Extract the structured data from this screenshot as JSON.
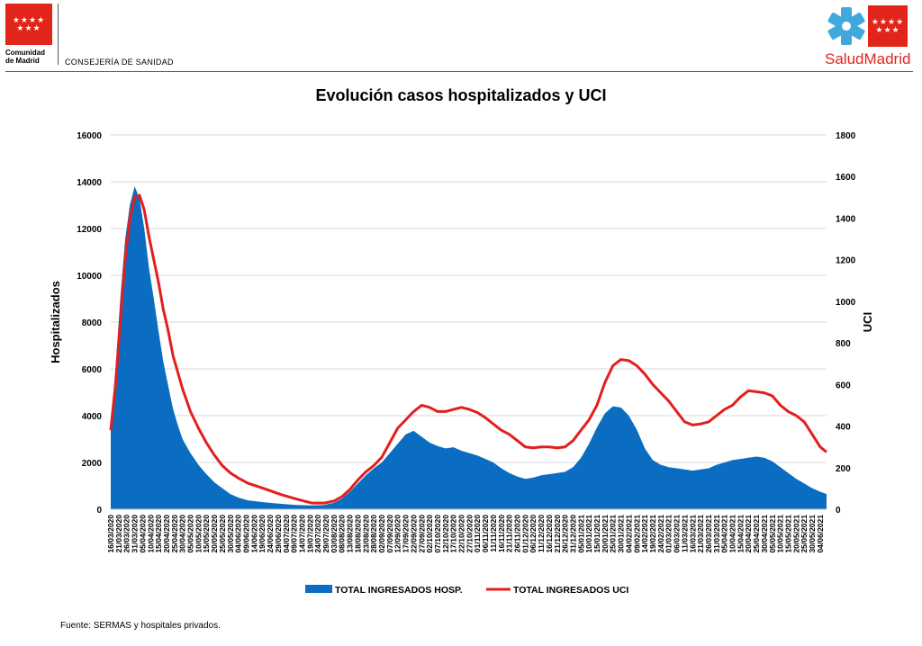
{
  "header": {
    "org_name_line1": "Comunidad",
    "org_name_line2": "de Madrid",
    "department": "CONSEJERÍA DE SANIDAD",
    "brand_left": "Salud",
    "brand_right": "Madrid",
    "logo_icon": "red-flag-stars-icon",
    "brand_icon": "star-of-life-icon"
  },
  "footer": {
    "source": "Fuente: SERMAS y hospitales privados."
  },
  "colors": {
    "hosp": "#0a6dc2",
    "uci": "#e31e1e",
    "brand_red": "#e1251b"
  },
  "chart_data": {
    "type": "area",
    "title": "Evolución casos hospitalizados y UCI",
    "ylabel": "Hospitalizados",
    "y2label": "UCI",
    "ylim": [
      0,
      16000
    ],
    "y2lim": [
      0,
      1800
    ],
    "yticks": [
      "0",
      "2000",
      "4000",
      "6000",
      "8000",
      "10000",
      "12000",
      "14000",
      "16000"
    ],
    "y2ticks": [
      "0",
      "200",
      "400",
      "600",
      "800",
      "1000",
      "1200",
      "1400",
      "1600",
      "1800"
    ],
    "grid": true,
    "legend_position": "bottom",
    "x_start": "2020-03-16",
    "x_end": "2021-06-08",
    "xticks": [
      "16/03/2020",
      "21/03/2020",
      "26/03/2020",
      "31/03/2020",
      "05/04/2020",
      "10/04/2020",
      "15/04/2020",
      "20/04/2020",
      "25/04/2020",
      "30/04/2020",
      "05/05/2020",
      "10/05/2020",
      "15/05/2020",
      "20/05/2020",
      "25/05/2020",
      "30/05/2020",
      "04/06/2020",
      "09/06/2020",
      "14/06/2020",
      "19/06/2020",
      "24/06/2020",
      "29/06/2020",
      "04/07/2020",
      "09/07/2020",
      "14/07/2020",
      "19/07/2020",
      "24/07/2020",
      "29/07/2020",
      "03/08/2020",
      "08/08/2020",
      "13/08/2020",
      "18/08/2020",
      "23/08/2020",
      "28/08/2020",
      "02/09/2020",
      "07/09/2020",
      "12/09/2020",
      "17/09/2020",
      "22/09/2020",
      "27/09/2020",
      "02/10/2020",
      "07/10/2020",
      "12/10/2020",
      "17/10/2020",
      "22/10/2020",
      "27/10/2020",
      "01/11/2020",
      "06/11/2020",
      "11/11/2020",
      "16/11/2020",
      "21/11/2020",
      "26/11/2020",
      "01/12/2020",
      "06/12/2020",
      "11/12/2020",
      "16/12/2020",
      "21/12/2020",
      "26/12/2020",
      "31/12/2020",
      "05/01/2021",
      "10/01/2021",
      "15/01/2021",
      "20/01/2021",
      "25/01/2021",
      "30/01/2021",
      "04/02/2021",
      "09/02/2021",
      "14/02/2021",
      "19/02/2021",
      "24/02/2021",
      "01/03/2021",
      "06/03/2021",
      "11/03/2021",
      "16/03/2021",
      "21/03/2021",
      "26/03/2021",
      "31/03/2021",
      "05/04/2021",
      "10/04/2021",
      "15/04/2021",
      "20/04/2021",
      "25/04/2021",
      "30/04/2021",
      "05/05/2021",
      "10/05/2021",
      "15/05/2021",
      "20/05/2021",
      "25/05/2021",
      "30/05/2021",
      "04/06/2021"
    ],
    "series": [
      {
        "name": "TOTAL INGRESADOS HOSP.",
        "axis": "left",
        "type": "area",
        "points": [
          [
            "2020-03-16",
            3400
          ],
          [
            "2020-03-19",
            6000
          ],
          [
            "2020-03-22",
            9000
          ],
          [
            "2020-03-25",
            11500
          ],
          [
            "2020-03-28",
            13000
          ],
          [
            "2020-03-31",
            13800
          ],
          [
            "2020-04-03",
            13300
          ],
          [
            "2020-04-06",
            12000
          ],
          [
            "2020-04-09",
            10300
          ],
          [
            "2020-04-12",
            9000
          ],
          [
            "2020-04-15",
            7600
          ],
          [
            "2020-04-18",
            6300
          ],
          [
            "2020-04-21",
            5300
          ],
          [
            "2020-04-24",
            4300
          ],
          [
            "2020-04-27",
            3600
          ],
          [
            "2020-04-30",
            3000
          ],
          [
            "2020-05-05",
            2400
          ],
          [
            "2020-05-10",
            1900
          ],
          [
            "2020-05-15",
            1500
          ],
          [
            "2020-05-20",
            1150
          ],
          [
            "2020-05-25",
            900
          ],
          [
            "2020-05-30",
            650
          ],
          [
            "2020-06-04",
            500
          ],
          [
            "2020-06-10",
            380
          ],
          [
            "2020-06-20",
            300
          ],
          [
            "2020-07-01",
            230
          ],
          [
            "2020-07-10",
            180
          ],
          [
            "2020-07-20",
            160
          ],
          [
            "2020-07-28",
            180
          ],
          [
            "2020-08-03",
            280
          ],
          [
            "2020-08-08",
            450
          ],
          [
            "2020-08-13",
            750
          ],
          [
            "2020-08-18",
            1100
          ],
          [
            "2020-08-23",
            1450
          ],
          [
            "2020-08-28",
            1750
          ],
          [
            "2020-09-02",
            2000
          ],
          [
            "2020-09-07",
            2400
          ],
          [
            "2020-09-12",
            2800
          ],
          [
            "2020-09-17",
            3200
          ],
          [
            "2020-09-22",
            3350
          ],
          [
            "2020-09-27",
            3100
          ],
          [
            "2020-10-02",
            2850
          ],
          [
            "2020-10-07",
            2700
          ],
          [
            "2020-10-12",
            2600
          ],
          [
            "2020-10-17",
            2650
          ],
          [
            "2020-10-22",
            2500
          ],
          [
            "2020-10-27",
            2400
          ],
          [
            "2020-11-01",
            2300
          ],
          [
            "2020-11-06",
            2150
          ],
          [
            "2020-11-11",
            2000
          ],
          [
            "2020-11-16",
            1750
          ],
          [
            "2020-11-21",
            1550
          ],
          [
            "2020-11-26",
            1400
          ],
          [
            "2020-12-01",
            1300
          ],
          [
            "2020-12-06",
            1350
          ],
          [
            "2020-12-11",
            1450
          ],
          [
            "2020-12-16",
            1500
          ],
          [
            "2020-12-21",
            1550
          ],
          [
            "2020-12-26",
            1600
          ],
          [
            "2020-12-31",
            1800
          ],
          [
            "2021-01-05",
            2200
          ],
          [
            "2021-01-10",
            2800
          ],
          [
            "2021-01-15",
            3500
          ],
          [
            "2021-01-20",
            4100
          ],
          [
            "2021-01-25",
            4400
          ],
          [
            "2021-01-30",
            4350
          ],
          [
            "2021-02-04",
            4000
          ],
          [
            "2021-02-09",
            3400
          ],
          [
            "2021-02-14",
            2600
          ],
          [
            "2021-02-19",
            2100
          ],
          [
            "2021-02-24",
            1900
          ],
          [
            "2021-03-01",
            1800
          ],
          [
            "2021-03-06",
            1750
          ],
          [
            "2021-03-11",
            1700
          ],
          [
            "2021-03-16",
            1650
          ],
          [
            "2021-03-21",
            1700
          ],
          [
            "2021-03-26",
            1750
          ],
          [
            "2021-03-31",
            1900
          ],
          [
            "2021-04-05",
            2000
          ],
          [
            "2021-04-10",
            2100
          ],
          [
            "2021-04-15",
            2150
          ],
          [
            "2021-04-20",
            2200
          ],
          [
            "2021-04-25",
            2250
          ],
          [
            "2021-04-30",
            2200
          ],
          [
            "2021-05-05",
            2050
          ],
          [
            "2021-05-10",
            1800
          ],
          [
            "2021-05-15",
            1550
          ],
          [
            "2021-05-20",
            1300
          ],
          [
            "2021-05-25",
            1100
          ],
          [
            "2021-05-30",
            900
          ],
          [
            "2021-06-04",
            750
          ],
          [
            "2021-06-08",
            650
          ]
        ]
      },
      {
        "name": "TOTAL INGRESADOS UCI",
        "axis": "right",
        "type": "line",
        "points": [
          [
            "2020-03-16",
            380
          ],
          [
            "2020-03-19",
            600
          ],
          [
            "2020-03-22",
            900
          ],
          [
            "2020-03-25",
            1200
          ],
          [
            "2020-03-28",
            1400
          ],
          [
            "2020-03-31",
            1500
          ],
          [
            "2020-04-03",
            1510
          ],
          [
            "2020-04-06",
            1440
          ],
          [
            "2020-04-09",
            1310
          ],
          [
            "2020-04-12",
            1200
          ],
          [
            "2020-04-15",
            1090
          ],
          [
            "2020-04-18",
            960
          ],
          [
            "2020-04-21",
            860
          ],
          [
            "2020-04-24",
            740
          ],
          [
            "2020-04-27",
            660
          ],
          [
            "2020-04-30",
            580
          ],
          [
            "2020-05-05",
            470
          ],
          [
            "2020-05-10",
            390
          ],
          [
            "2020-05-15",
            320
          ],
          [
            "2020-05-20",
            260
          ],
          [
            "2020-05-25",
            210
          ],
          [
            "2020-05-30",
            175
          ],
          [
            "2020-06-04",
            150
          ],
          [
            "2020-06-10",
            125
          ],
          [
            "2020-06-20",
            100
          ],
          [
            "2020-07-01",
            70
          ],
          [
            "2020-07-10",
            50
          ],
          [
            "2020-07-20",
            30
          ],
          [
            "2020-07-28",
            30
          ],
          [
            "2020-08-03",
            40
          ],
          [
            "2020-08-08",
            60
          ],
          [
            "2020-08-13",
            95
          ],
          [
            "2020-08-18",
            140
          ],
          [
            "2020-08-23",
            180
          ],
          [
            "2020-08-28",
            210
          ],
          [
            "2020-09-02",
            250
          ],
          [
            "2020-09-07",
            320
          ],
          [
            "2020-09-12",
            390
          ],
          [
            "2020-09-17",
            430
          ],
          [
            "2020-09-22",
            470
          ],
          [
            "2020-09-27",
            500
          ],
          [
            "2020-10-02",
            490
          ],
          [
            "2020-10-07",
            470
          ],
          [
            "2020-10-12",
            470
          ],
          [
            "2020-10-17",
            480
          ],
          [
            "2020-10-22",
            490
          ],
          [
            "2020-10-27",
            480
          ],
          [
            "2020-11-01",
            465
          ],
          [
            "2020-11-06",
            440
          ],
          [
            "2020-11-11",
            410
          ],
          [
            "2020-11-16",
            380
          ],
          [
            "2020-11-21",
            360
          ],
          [
            "2020-11-26",
            330
          ],
          [
            "2020-12-01",
            300
          ],
          [
            "2020-12-06",
            295
          ],
          [
            "2020-12-11",
            300
          ],
          [
            "2020-12-16",
            300
          ],
          [
            "2020-12-21",
            295
          ],
          [
            "2020-12-26",
            300
          ],
          [
            "2020-12-31",
            330
          ],
          [
            "2021-01-05",
            380
          ],
          [
            "2021-01-10",
            430
          ],
          [
            "2021-01-15",
            500
          ],
          [
            "2021-01-20",
            610
          ],
          [
            "2021-01-25",
            690
          ],
          [
            "2021-01-30",
            720
          ],
          [
            "2021-02-04",
            715
          ],
          [
            "2021-02-09",
            690
          ],
          [
            "2021-02-14",
            650
          ],
          [
            "2021-02-19",
            600
          ],
          [
            "2021-02-24",
            560
          ],
          [
            "2021-03-01",
            520
          ],
          [
            "2021-03-06",
            470
          ],
          [
            "2021-03-11",
            420
          ],
          [
            "2021-03-16",
            405
          ],
          [
            "2021-03-21",
            410
          ],
          [
            "2021-03-26",
            420
          ],
          [
            "2021-03-31",
            450
          ],
          [
            "2021-04-05",
            480
          ],
          [
            "2021-04-10",
            500
          ],
          [
            "2021-04-15",
            540
          ],
          [
            "2021-04-20",
            570
          ],
          [
            "2021-04-25",
            565
          ],
          [
            "2021-04-30",
            560
          ],
          [
            "2021-05-05",
            545
          ],
          [
            "2021-05-10",
            500
          ],
          [
            "2021-05-15",
            470
          ],
          [
            "2021-05-20",
            450
          ],
          [
            "2021-05-25",
            420
          ],
          [
            "2021-05-30",
            360
          ],
          [
            "2021-06-04",
            300
          ],
          [
            "2021-06-08",
            275
          ]
        ]
      }
    ]
  }
}
